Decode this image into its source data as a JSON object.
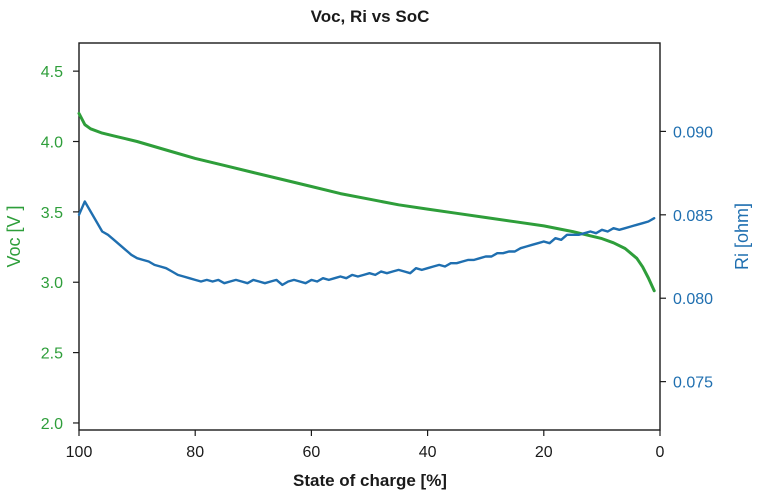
{
  "chart_data": {
    "type": "line",
    "title": "Voc, Ri vs SoC",
    "xlabel": "State of charge [%]",
    "x_ticks": [
      "100",
      "80",
      "60",
      "40",
      "20",
      "0"
    ],
    "x_tick_values": [
      100,
      80,
      60,
      40,
      20,
      0
    ],
    "xlim": [
      100,
      0
    ],
    "y1": {
      "label": "Voc [V ]",
      "color": "#2e9e3a",
      "ylim": [
        1.95,
        4.7
      ],
      "ticks": [
        "2.0",
        "2.5",
        "3.0",
        "3.5",
        "4.0",
        "4.5"
      ],
      "tick_values": [
        2.0,
        2.5,
        3.0,
        3.5,
        4.0,
        4.5
      ]
    },
    "y2": {
      "label": "Ri [ohm]",
      "color": "#1f6fb0",
      "ylim": [
        0.0721,
        0.0953
      ],
      "ticks": [
        "0.075",
        "0.080",
        "0.085",
        "0.090"
      ],
      "tick_values": [
        0.075,
        0.08,
        0.085,
        0.09
      ]
    },
    "series": [
      {
        "axis": "y1",
        "color": "#2e9e3a",
        "x": [
          100,
          99,
          98,
          96,
          94,
          92,
          90,
          85,
          80,
          75,
          70,
          65,
          60,
          55,
          50,
          45,
          40,
          35,
          30,
          25,
          20,
          15,
          12,
          10,
          8,
          6,
          4,
          3,
          2,
          1
        ],
        "y": [
          4.2,
          4.12,
          4.09,
          4.06,
          4.04,
          4.02,
          4.0,
          3.94,
          3.88,
          3.83,
          3.78,
          3.73,
          3.68,
          3.63,
          3.59,
          3.55,
          3.52,
          3.49,
          3.46,
          3.43,
          3.4,
          3.36,
          3.33,
          3.31,
          3.28,
          3.24,
          3.17,
          3.11,
          3.03,
          2.94
        ]
      },
      {
        "axis": "y2",
        "color": "#1f6fb0",
        "x": [
          100,
          99,
          98,
          97,
          96,
          95,
          94,
          93,
          92,
          91,
          90,
          89,
          88,
          87,
          86,
          85,
          84,
          83,
          82,
          81,
          80,
          79,
          78,
          77,
          76,
          75,
          74,
          73,
          72,
          71,
          70,
          69,
          68,
          67,
          66,
          65,
          64,
          63,
          62,
          61,
          60,
          59,
          58,
          57,
          56,
          55,
          54,
          53,
          52,
          51,
          50,
          49,
          48,
          47,
          46,
          45,
          44,
          43,
          42,
          41,
          40,
          39,
          38,
          37,
          36,
          35,
          34,
          33,
          32,
          31,
          30,
          29,
          28,
          27,
          26,
          25,
          24,
          23,
          22,
          21,
          20,
          19,
          18,
          17,
          16,
          15,
          14,
          13,
          12,
          11,
          10,
          9,
          8,
          7,
          6,
          5,
          4,
          3,
          2,
          1
        ],
        "y": [
          0.085,
          0.0858,
          0.0852,
          0.0846,
          0.084,
          0.0838,
          0.0835,
          0.0832,
          0.0829,
          0.0826,
          0.0824,
          0.0823,
          0.0822,
          0.082,
          0.0819,
          0.0818,
          0.0816,
          0.0814,
          0.0813,
          0.0812,
          0.0811,
          0.081,
          0.0811,
          0.081,
          0.0811,
          0.0809,
          0.081,
          0.0811,
          0.081,
          0.0809,
          0.0811,
          0.081,
          0.0809,
          0.081,
          0.0811,
          0.0808,
          0.081,
          0.0811,
          0.081,
          0.0809,
          0.0811,
          0.081,
          0.0812,
          0.0811,
          0.0812,
          0.0813,
          0.0812,
          0.0814,
          0.0813,
          0.0814,
          0.0815,
          0.0814,
          0.0816,
          0.0815,
          0.0816,
          0.0817,
          0.0816,
          0.0815,
          0.0818,
          0.0817,
          0.0818,
          0.0819,
          0.082,
          0.0819,
          0.0821,
          0.0821,
          0.0822,
          0.0823,
          0.0823,
          0.0824,
          0.0825,
          0.0825,
          0.0827,
          0.0827,
          0.0828,
          0.0828,
          0.083,
          0.0831,
          0.0832,
          0.0833,
          0.0834,
          0.0833,
          0.0836,
          0.0835,
          0.0838,
          0.0838,
          0.0838,
          0.0839,
          0.084,
          0.0839,
          0.0841,
          0.084,
          0.0842,
          0.0841,
          0.0842,
          0.0843,
          0.0844,
          0.0845,
          0.0846,
          0.0848
        ]
      }
    ]
  }
}
